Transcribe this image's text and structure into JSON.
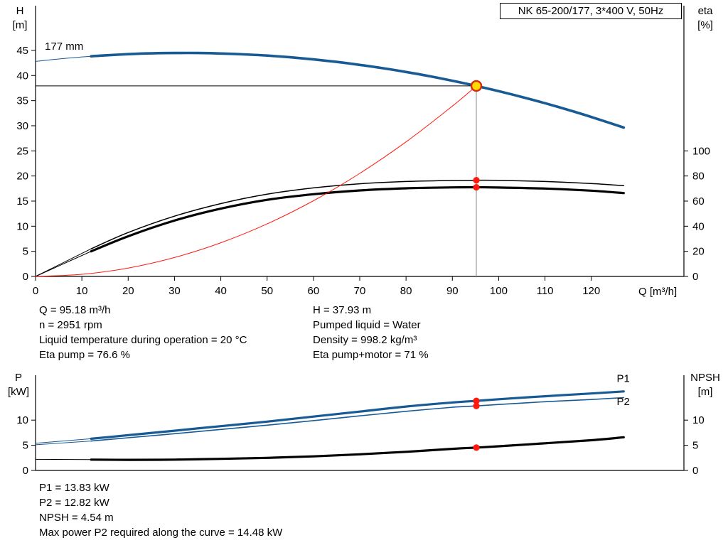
{
  "title_box": "NK 65-200/177, 3*400 V, 50Hz",
  "info_top": {
    "left": [
      "Q = 95.18 m³/h",
      "n = 2951 rpm",
      "Liquid temperature during operation = 20 °C",
      "Eta pump = 76.6 %"
    ],
    "right": [
      "H = 37.93 m",
      "Pumped liquid = Water",
      "Density = 998.2 kg/m³",
      "Eta pump+motor = 71 %"
    ]
  },
  "info_bottom": [
    "P1 = 13.83 kW",
    "P2 = 12.82 kW",
    "NPSH = 4.54 m",
    "Max power P2 required along the curve = 14.48 kW"
  ],
  "chart_data": [
    {
      "id": "qh",
      "type": "line",
      "title": "Pump curve QH with efficiency",
      "x_label": "Q [m³/h]",
      "x_range": [
        0,
        140
      ],
      "x_ticks": [
        0,
        10,
        20,
        30,
        40,
        50,
        60,
        70,
        80,
        90,
        100,
        110,
        120
      ],
      "left_axis": {
        "label": "H",
        "unit": "[m]",
        "range": [
          0,
          46.55
        ],
        "ticks": [
          0,
          5,
          10,
          15,
          20,
          25,
          30,
          35,
          40,
          45
        ]
      },
      "right_axis": {
        "label": "eta",
        "unit": "[%]",
        "range": [
          0,
          186.2
        ],
        "ticks": [
          0,
          20,
          40,
          60,
          80,
          100
        ]
      },
      "series": [
        {
          "name": "pump-curve-177mm",
          "axis": "left",
          "color": "#175a94",
          "width": 3.6,
          "thin_until": 12,
          "x": [
            0,
            5,
            10,
            12,
            15,
            20,
            25,
            30,
            35,
            40,
            45,
            50,
            55,
            60,
            65,
            70,
            75,
            80,
            85,
            90,
            95.18,
            100,
            105,
            110,
            115,
            120,
            127
          ],
          "y": [
            42.8,
            43.3,
            43.7,
            43.84,
            44.02,
            44.26,
            44.42,
            44.49,
            44.49,
            44.39,
            44.22,
            43.97,
            43.63,
            43.21,
            42.71,
            42.12,
            41.46,
            40.71,
            39.88,
            38.96,
            37.93,
            36.89,
            35.73,
            34.49,
            33.16,
            31.75,
            29.64
          ]
        },
        {
          "name": "eta-pump",
          "axis": "right",
          "color": "#000000",
          "width": 1.5,
          "thin_until": 12,
          "x": [
            0,
            6,
            12,
            20,
            30,
            40,
            50,
            60,
            70,
            80,
            90,
            95.18,
            100,
            110,
            120,
            127
          ],
          "y": [
            0,
            11,
            22,
            35,
            48,
            58,
            65.5,
            70.5,
            73.8,
            75.6,
            76.4,
            76.6,
            76.5,
            75.6,
            74.0,
            72.3
          ]
        },
        {
          "name": "eta-pump-motor",
          "axis": "right",
          "color": "#000000",
          "width": 3.2,
          "thin_until": 12,
          "x": [
            0,
            6,
            12,
            20,
            30,
            40,
            50,
            60,
            70,
            80,
            90,
            95.18,
            100,
            110,
            120,
            127
          ],
          "y": [
            0,
            10,
            20,
            32,
            44.5,
            54,
            61,
            65.5,
            68.5,
            70.2,
            70.9,
            71,
            70.8,
            70.0,
            68.3,
            66.4
          ]
        },
        {
          "name": "system-curve",
          "axis": "left",
          "color": "#ff1a10",
          "width": 1,
          "thin_until": -1,
          "x": [
            0,
            10,
            20,
            30,
            40,
            50,
            60,
            70,
            80,
            90,
            95.18
          ],
          "y": [
            0,
            0.42,
            1.67,
            3.77,
            6.7,
            10.46,
            15.07,
            20.51,
            26.79,
            33.91,
            37.93
          ]
        }
      ],
      "ref_lines": [
        {
          "name": "duty-head-line",
          "axis": "left",
          "x1": 0,
          "y1": 37.93,
          "x2": 95.18,
          "y2": 37.93,
          "color": "#000000",
          "width": 1
        },
        {
          "name": "duty-flow-line",
          "axis": "left",
          "x1": 95.18,
          "y1": 0,
          "x2": 95.18,
          "y2": 37.93,
          "color": "#8a8a8a",
          "width": 1
        }
      ],
      "markers": [
        {
          "name": "duty-point",
          "axis": "left",
          "x": 95.18,
          "y": 37.93,
          "r": 7,
          "fill": "#ffd900",
          "stroke": "#d42a10",
          "stroke_width": 2.4
        },
        {
          "name": "eta-pump-point",
          "axis": "right",
          "x": 95.18,
          "y": 76.6,
          "r": 4.6,
          "fill": "#ff1a10",
          "stroke": "none",
          "stroke_width": 0
        },
        {
          "name": "eta-pump-motor-point",
          "axis": "right",
          "x": 95.18,
          "y": 71,
          "r": 4.6,
          "fill": "#ff1a10",
          "stroke": "none",
          "stroke_width": 0
        }
      ],
      "curve_labels": [
        {
          "name": "impeller-diameter-label",
          "text": "177 mm",
          "axis": "left",
          "x": 2,
          "y": 45.1,
          "color": "#000000",
          "anchor": "start"
        }
      ]
    },
    {
      "id": "power",
      "type": "line",
      "title": "Power and NPSH curves",
      "x_label": "",
      "x_range": [
        0,
        140
      ],
      "x_ticks": [],
      "left_axis": {
        "label": "P",
        "unit": "[kW]",
        "range": [
          0,
          18.5
        ],
        "ticks": [
          0,
          5,
          10
        ]
      },
      "right_axis": {
        "label": "NPSH",
        "unit": "[m]",
        "range": [
          0,
          18.5
        ],
        "ticks": [
          0,
          5,
          10
        ]
      },
      "series": [
        {
          "name": "p1-curve",
          "axis": "left",
          "color": "#175a94",
          "width": 3.2,
          "thin_until": 12,
          "x": [
            0,
            12,
            20,
            30,
            40,
            50,
            60,
            70,
            80,
            90,
            95.18,
            100,
            110,
            120,
            127
          ],
          "y": [
            5.4,
            6.3,
            7.0,
            7.9,
            8.8,
            9.7,
            10.7,
            11.7,
            12.7,
            13.5,
            13.83,
            14.15,
            14.75,
            15.3,
            15.7
          ]
        },
        {
          "name": "p2-curve",
          "axis": "left",
          "color": "#175a94",
          "width": 1.6,
          "thin_until": 12,
          "x": [
            0,
            12,
            20,
            30,
            40,
            50,
            60,
            70,
            80,
            90,
            95.18,
            100,
            110,
            120,
            127
          ],
          "y": [
            5.1,
            5.85,
            6.5,
            7.3,
            8.15,
            9.0,
            9.9,
            10.85,
            11.75,
            12.55,
            12.82,
            13.1,
            13.65,
            14.1,
            14.48
          ]
        },
        {
          "name": "npsh-curve",
          "axis": "right",
          "color": "#000000",
          "width": 3.2,
          "thin_until": 12,
          "x": [
            0,
            12,
            20,
            30,
            40,
            50,
            60,
            70,
            80,
            90,
            95.18,
            100,
            110,
            120,
            127
          ],
          "y": [
            2.2,
            2.15,
            2.1,
            2.15,
            2.3,
            2.5,
            2.8,
            3.2,
            3.7,
            4.3,
            4.54,
            4.8,
            5.4,
            6.0,
            6.6
          ]
        }
      ],
      "ref_lines": [],
      "markers": [
        {
          "name": "p1-point",
          "axis": "left",
          "x": 95.18,
          "y": 13.83,
          "r": 4.6,
          "fill": "#ff1a10",
          "stroke": "none",
          "stroke_width": 0
        },
        {
          "name": "p2-point",
          "axis": "left",
          "x": 95.18,
          "y": 12.82,
          "r": 4.6,
          "fill": "#ff1a10",
          "stroke": "none",
          "stroke_width": 0
        },
        {
          "name": "npsh-point",
          "axis": "right",
          "x": 95.18,
          "y": 4.54,
          "r": 4.6,
          "fill": "#ff1a10",
          "stroke": "none",
          "stroke_width": 0
        }
      ],
      "curve_labels": [
        {
          "name": "p1-label",
          "text": "P1",
          "axis": "left",
          "x": 125.5,
          "y": 17.6,
          "color": "#175a94",
          "anchor": "start"
        },
        {
          "name": "p2-label",
          "text": "P2",
          "axis": "left",
          "x": 125.5,
          "y": 13.0,
          "color": "#175a94",
          "anchor": "start"
        }
      ]
    }
  ]
}
